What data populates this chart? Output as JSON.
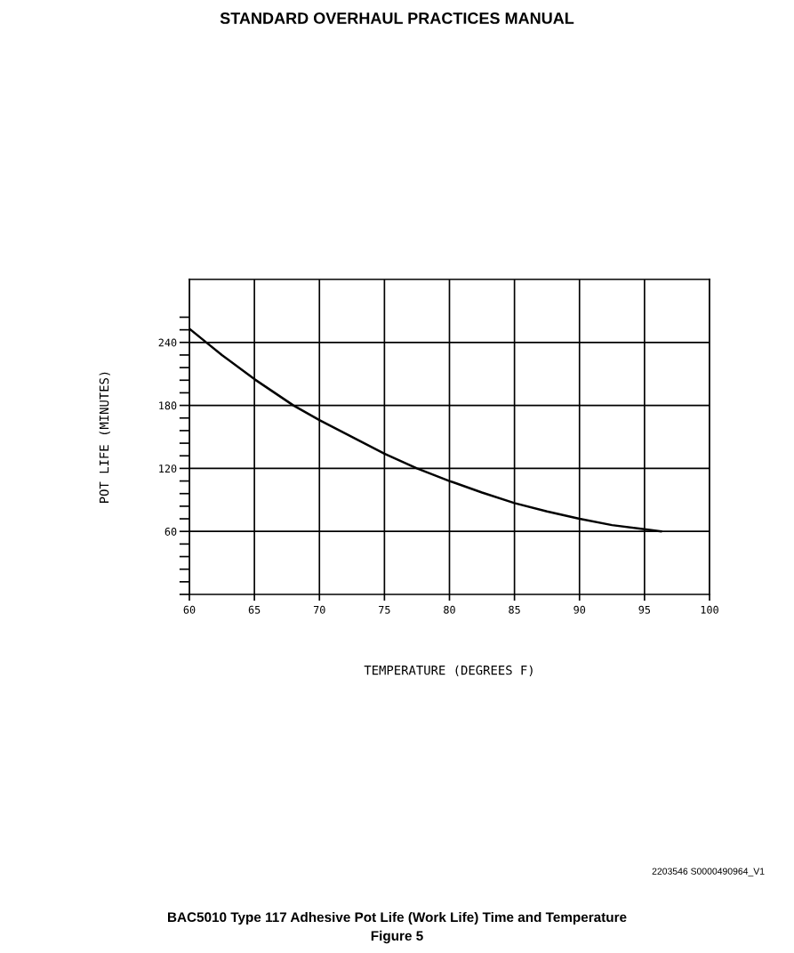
{
  "chart_data": {
    "type": "line",
    "title": "STANDARD OVERHAUL PRACTICES MANUAL",
    "xlabel": "TEMPERATURE (DEGREES F)",
    "ylabel": "POT LIFE (MINUTES)",
    "annotations": [
      "2203546 S0000490964_V1",
      "BAC5010 Type 117 Adhesive Pot Life (Work Life) Time and Temperature",
      "Figure 5"
    ],
    "series": [
      {
        "color": "#000000",
        "x": [
          60,
          61.2,
          62.5,
          65,
          68,
          70,
          75,
          77.5,
          80,
          82.5,
          85,
          87.5,
          90,
          92.5,
          95,
          96.3
        ],
        "values": [
          253,
          241,
          228,
          205,
          180,
          166,
          134,
          120,
          108,
          97,
          87,
          79,
          72,
          66,
          62,
          60
        ]
      }
    ],
    "xlim": [
      60,
      100
    ],
    "xticks": [
      60,
      65,
      70,
      75,
      80,
      85,
      90,
      95,
      100
    ],
    "ylim": [
      0,
      300
    ],
    "yticks": [
      {
        "value": 0,
        "label": null
      },
      {
        "value": 12,
        "label": null
      },
      {
        "value": 24,
        "label": null
      },
      {
        "value": 36,
        "label": null
      },
      {
        "value": 48,
        "label": null
      },
      60,
      {
        "value": 72,
        "label": null
      },
      {
        "value": 84,
        "label": null
      },
      {
        "value": 96,
        "label": null
      },
      {
        "value": 108,
        "label": null
      },
      120,
      {
        "value": 132,
        "label": null
      },
      {
        "value": 144,
        "label": null
      },
      {
        "value": 156,
        "label": null
      },
      {
        "value": 168,
        "label": null
      },
      180,
      {
        "value": 192,
        "label": null
      },
      {
        "value": 204,
        "label": null
      },
      {
        "value": 216,
        "label": null
      },
      {
        "value": 228,
        "label": null
      },
      240,
      {
        "value": 252,
        "label": null
      },
      {
        "value": 264,
        "label": null
      }
    ],
    "grid": true,
    "marker": "none",
    "line_style": "solid",
    "legend": false
  }
}
